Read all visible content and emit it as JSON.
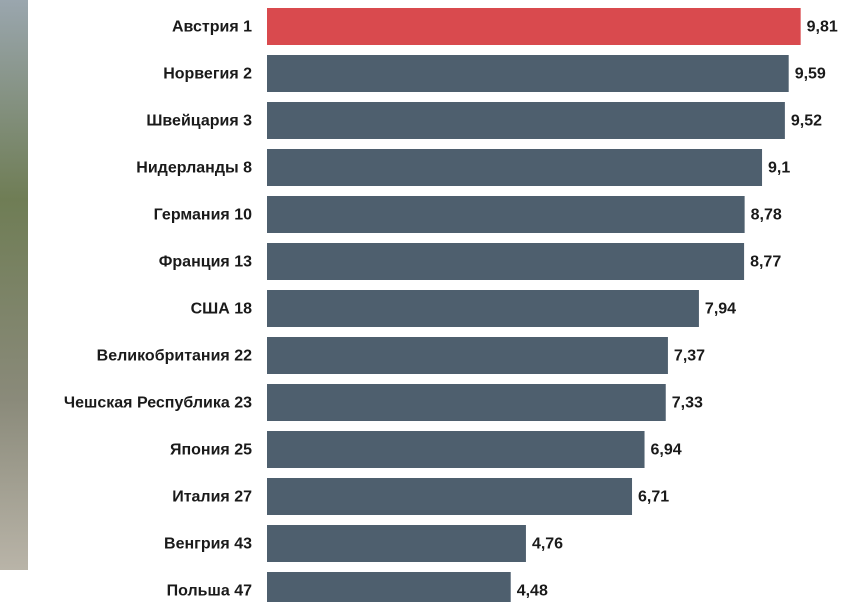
{
  "chart_data": {
    "type": "bar",
    "orientation": "horizontal",
    "categories": [
      "Австрия  1",
      "Норвегия 2",
      "Швейцария  3",
      "Нидерланды 8",
      "Германия 10",
      "Франция 13",
      "США 18",
      "Великобритания 22",
      "Чешская Республика 23",
      "Япония 25",
      "Италия  27",
      "Венгрия 43",
      "Польша  47"
    ],
    "values": [
      9.81,
      9.59,
      9.52,
      9.1,
      8.78,
      8.77,
      7.94,
      7.37,
      7.33,
      6.94,
      6.71,
      4.76,
      4.48
    ],
    "value_labels": [
      "9,81",
      "9,59",
      "9,52",
      "9,1",
      "8,78",
      "8,77",
      "7,94",
      "7,37",
      "7,33",
      "6,94",
      "6,71",
      "4,76",
      "4,48"
    ],
    "colors": [
      "#d94a4e",
      "#4e5f6e",
      "#4e5f6e",
      "#4e5f6e",
      "#4e5f6e",
      "#4e5f6e",
      "#4e5f6e",
      "#4e5f6e",
      "#4e5f6e",
      "#4e5f6e",
      "#4e5f6e",
      "#4e5f6e",
      "#4e5f6e"
    ]
  }
}
